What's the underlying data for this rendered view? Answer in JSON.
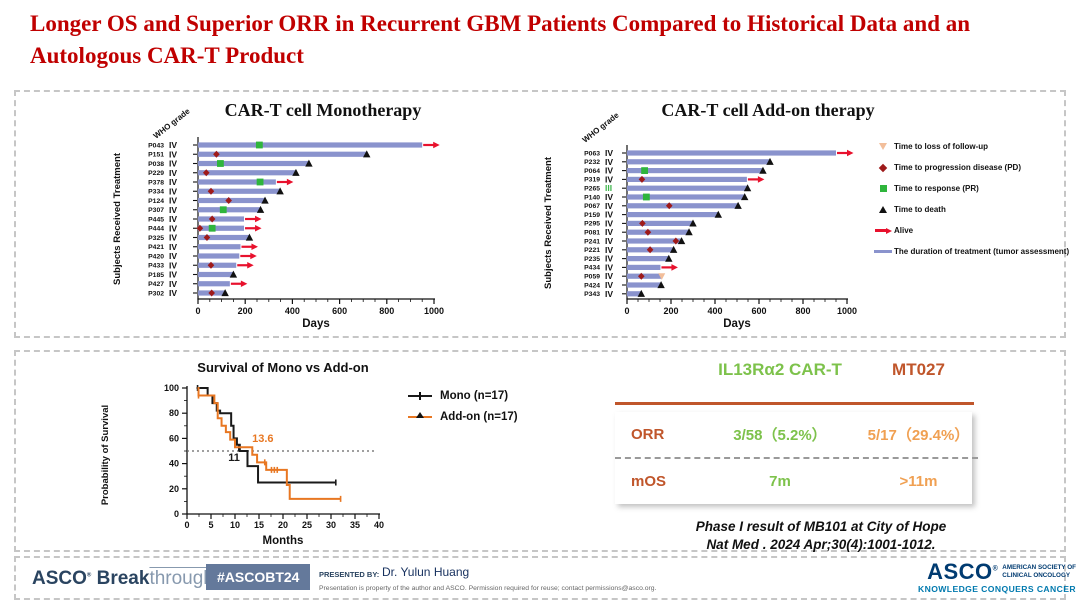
{
  "title": {
    "line1": "Longer OS and Superior ORR in Recurrent GBM Patients Compared to Historical Data and an",
    "line2": "Autologous CAR-T Product"
  },
  "colors": {
    "title_red": "#C00000",
    "bar": "#8A93CD",
    "pd": "#9E1A1A",
    "pr": "#2FB53C",
    "loss": "#F2BE9A",
    "alive": "#E8112D",
    "mono": "#1A1A1A",
    "addon": "#E87722",
    "grade3_green": "#3CB54A",
    "table_green": "#7DC24B",
    "table_orange_dark": "#C0562B",
    "table_orange_light": "#F0A052",
    "brand_navy": "#2A4460",
    "badge_bg": "#64799B",
    "asco_navy": "#003B71",
    "asco_teal": "#0079AE"
  },
  "chart_data": [
    {
      "type": "swimmer",
      "title": "CAR-T cell Monotherapy",
      "ylabel": "Subjects Received Treatment",
      "xlabel": "Days",
      "who_label": "WHO grade",
      "xlim": [
        0,
        1000
      ],
      "xticks": [
        0,
        200,
        400,
        600,
        800,
        1000
      ],
      "patients": [
        {
          "id": "P043",
          "grade": "IV",
          "days": 950,
          "events": [
            {
              "t": "pr",
              "day": 260
            },
            {
              "t": "alive"
            }
          ]
        },
        {
          "id": "P151",
          "grade": "IV",
          "days": 715,
          "events": [
            {
              "t": "pd",
              "day": 78
            },
            {
              "t": "death"
            }
          ]
        },
        {
          "id": "P038",
          "grade": "IV",
          "days": 470,
          "events": [
            {
              "t": "pr",
              "day": 95
            },
            {
              "t": "death"
            }
          ]
        },
        {
          "id": "P229",
          "grade": "IV",
          "days": 415,
          "events": [
            {
              "t": "pd",
              "day": 35
            },
            {
              "t": "death"
            }
          ]
        },
        {
          "id": "P378",
          "grade": "IV",
          "days": 330,
          "events": [
            {
              "t": "pr",
              "day": 263
            },
            {
              "t": "alive"
            }
          ]
        },
        {
          "id": "P334",
          "grade": "IV",
          "days": 348,
          "events": [
            {
              "t": "pd",
              "day": 55
            },
            {
              "t": "death"
            }
          ]
        },
        {
          "id": "P124",
          "grade": "IV",
          "days": 284,
          "events": [
            {
              "t": "pd",
              "day": 130
            },
            {
              "t": "death"
            }
          ]
        },
        {
          "id": "P307",
          "grade": "IV",
          "days": 265,
          "events": [
            {
              "t": "pr",
              "day": 107
            },
            {
              "t": "death"
            }
          ]
        },
        {
          "id": "P445",
          "grade": "IV",
          "days": 195,
          "events": [
            {
              "t": "pd",
              "day": 60
            },
            {
              "t": "alive"
            }
          ]
        },
        {
          "id": "P444",
          "grade": "IV",
          "days": 195,
          "events": [
            {
              "t": "pd",
              "day": 8
            },
            {
              "t": "pr",
              "day": 60
            },
            {
              "t": "alive"
            }
          ]
        },
        {
          "id": "P325",
          "grade": "IV",
          "days": 218,
          "events": [
            {
              "t": "pd",
              "day": 38
            },
            {
              "t": "death"
            }
          ]
        },
        {
          "id": "P421",
          "grade": "IV",
          "days": 180,
          "events": [
            {
              "t": "alive"
            }
          ]
        },
        {
          "id": "P420",
          "grade": "IV",
          "days": 175,
          "events": [
            {
              "t": "alive"
            }
          ]
        },
        {
          "id": "P433",
          "grade": "IV",
          "days": 162,
          "events": [
            {
              "t": "pd",
              "day": 55
            },
            {
              "t": "alive"
            }
          ]
        },
        {
          "id": "P185",
          "grade": "IV",
          "days": 150,
          "events": [
            {
              "t": "death"
            }
          ]
        },
        {
          "id": "P427",
          "grade": "IV",
          "days": 135,
          "events": [
            {
              "t": "alive"
            }
          ]
        },
        {
          "id": "P302",
          "grade": "IV",
          "days": 115,
          "events": [
            {
              "t": "pd",
              "day": 58
            },
            {
              "t": "death"
            }
          ]
        }
      ]
    },
    {
      "type": "swimmer",
      "title": "CAR-T cell Add-on therapy",
      "ylabel": "Subjects Received Treatment",
      "xlabel": "Days",
      "who_label": "WHO grade",
      "xlim": [
        0,
        1000
      ],
      "xticks": [
        0,
        200,
        400,
        600,
        800,
        1000
      ],
      "patients": [
        {
          "id": "P063",
          "grade": "IV",
          "days": 950,
          "events": [
            {
              "t": "alive"
            }
          ]
        },
        {
          "id": "P232",
          "grade": "IV",
          "days": 650,
          "events": [
            {
              "t": "death"
            }
          ]
        },
        {
          "id": "P064",
          "grade": "IV",
          "days": 618,
          "events": [
            {
              "t": "pr",
              "day": 80
            },
            {
              "t": "death"
            }
          ]
        },
        {
          "id": "P319",
          "grade": "IV",
          "days": 545,
          "events": [
            {
              "t": "pd",
              "day": 68
            },
            {
              "t": "alive"
            }
          ]
        },
        {
          "id": "P265",
          "grade": "III",
          "days": 548,
          "events": [
            {
              "t": "death"
            }
          ]
        },
        {
          "id": "P140",
          "grade": "IV",
          "days": 535,
          "events": [
            {
              "t": "pr",
              "day": 88
            },
            {
              "t": "death"
            }
          ]
        },
        {
          "id": "P067",
          "grade": "IV",
          "days": 505,
          "events": [
            {
              "t": "pd",
              "day": 192
            },
            {
              "t": "death"
            }
          ]
        },
        {
          "id": "P159",
          "grade": "IV",
          "days": 415,
          "events": [
            {
              "t": "death"
            }
          ]
        },
        {
          "id": "P295",
          "grade": "IV",
          "days": 300,
          "events": [
            {
              "t": "pd",
              "day": 70
            },
            {
              "t": "death"
            }
          ]
        },
        {
          "id": "P081",
          "grade": "IV",
          "days": 282,
          "events": [
            {
              "t": "pd",
              "day": 95
            },
            {
              "t": "death"
            }
          ]
        },
        {
          "id": "P241",
          "grade": "IV",
          "days": 248,
          "events": [
            {
              "t": "pd",
              "day": 222
            },
            {
              "t": "death"
            }
          ]
        },
        {
          "id": "P221",
          "grade": "IV",
          "days": 212,
          "events": [
            {
              "t": "pd",
              "day": 105
            },
            {
              "t": "death"
            }
          ]
        },
        {
          "id": "P235",
          "grade": "IV",
          "days": 190,
          "events": [
            {
              "t": "death"
            }
          ]
        },
        {
          "id": "P434",
          "grade": "IV",
          "days": 152,
          "events": [
            {
              "t": "alive"
            }
          ]
        },
        {
          "id": "P059",
          "grade": "IV",
          "days": 158,
          "events": [
            {
              "t": "pd",
              "day": 65
            },
            {
              "t": "loss"
            }
          ]
        },
        {
          "id": "P424",
          "grade": "IV",
          "days": 155,
          "events": [
            {
              "t": "death"
            }
          ]
        },
        {
          "id": "P343",
          "grade": "IV",
          "days": 65,
          "events": [
            {
              "t": "death"
            }
          ]
        }
      ]
    },
    {
      "type": "line",
      "title": "Survival of Mono vs Add-on",
      "xlabel": "Months",
      "ylabel": "Probability of Survival",
      "xlim": [
        0,
        40
      ],
      "ylim": [
        0,
        100
      ],
      "xticks": [
        0,
        5,
        10,
        15,
        20,
        25,
        30,
        35,
        40
      ],
      "yticks": [
        0,
        20,
        40,
        60,
        80,
        100
      ],
      "median_line_y": 50,
      "legend_position": "upper-right",
      "series": [
        {
          "name": "Mono (n=17)",
          "median_label": "11",
          "median_label_pos": [
            9.8,
            42
          ],
          "points": [
            [
              2,
              100
            ],
            [
              4.3,
              100
            ],
            [
              4.3,
              94
            ],
            [
              5.3,
              94
            ],
            [
              5.3,
              88
            ],
            [
              6.2,
              88
            ],
            [
              6.2,
              82
            ],
            [
              6.9,
              82
            ],
            [
              6.9,
              80
            ],
            [
              9.2,
              80
            ],
            [
              9.2,
              70
            ],
            [
              9.7,
              70
            ],
            [
              9.7,
              60
            ],
            [
              10.4,
              60
            ],
            [
              10.4,
              55
            ],
            [
              11,
              55
            ],
            [
              11,
              50
            ],
            [
              12.6,
              50
            ],
            [
              12.6,
              38
            ],
            [
              14.8,
              38
            ],
            [
              14.8,
              25
            ],
            [
              31,
              25
            ]
          ],
          "censors": [
            [
              2.2,
              100
            ],
            [
              10.8,
              52
            ],
            [
              31,
              25
            ]
          ]
        },
        {
          "name": "Add-on (n=17)",
          "median_label": "13.6",
          "median_label_pos": [
            15.8,
            57
          ],
          "points": [
            [
              2.2,
              100
            ],
            [
              2.4,
              100
            ],
            [
              2.4,
              94
            ],
            [
              5.7,
              94
            ],
            [
              5.7,
              88
            ],
            [
              6.4,
              88
            ],
            [
              6.4,
              76
            ],
            [
              7.2,
              76
            ],
            [
              7.2,
              70
            ],
            [
              8.1,
              70
            ],
            [
              8.1,
              65
            ],
            [
              9,
              65
            ],
            [
              9,
              59
            ],
            [
              10,
              59
            ],
            [
              10,
              53
            ],
            [
              13.6,
              53
            ],
            [
              13.6,
              47
            ],
            [
              14.6,
              47
            ],
            [
              14.6,
              41
            ],
            [
              16.5,
              41
            ],
            [
              16.5,
              35
            ],
            [
              20.8,
              35
            ],
            [
              20.8,
              23
            ],
            [
              21.4,
              23
            ],
            [
              21.4,
              12
            ],
            [
              32,
              12
            ]
          ],
          "censors": [
            [
              2.4,
              94
            ],
            [
              16.2,
              41
            ],
            [
              17.6,
              35
            ],
            [
              18.2,
              35
            ],
            [
              18.8,
              35
            ],
            [
              32,
              12
            ]
          ]
        }
      ]
    }
  ],
  "swimmer_legend": {
    "items": [
      {
        "symbol": "triangle-down",
        "label": "Time to loss of follow-up"
      },
      {
        "symbol": "diamond",
        "label": "Time to progression disease (PD)"
      },
      {
        "symbol": "square",
        "label": "Time to response (PR)"
      },
      {
        "symbol": "triangle-up",
        "label": "Time to death"
      },
      {
        "symbol": "arrow",
        "label": "Alive"
      },
      {
        "symbol": "line",
        "label": "The duration of treatment (tumor assessment)"
      }
    ]
  },
  "comparison": {
    "col1_header": "IL13Rα2 CAR-T",
    "col2_header": "MT027",
    "rows": [
      {
        "label": "ORR",
        "col1": "3/58（5.2%）",
        "col2": "5/17（29.4%）"
      },
      {
        "label": "mOS",
        "col1": "7m",
        "col2": ">11m"
      }
    ]
  },
  "citation": {
    "line1": "Phase I result of MB101 at City of Hope",
    "line2": "Nat Med . 2024 Apr;30(4):1001-1012."
  },
  "footer": {
    "brand_asco": "ASCO",
    "brand_break": "Break",
    "brand_through": "through",
    "hashtag": "#ASCOBT24",
    "presented_by_label": "PRESENTED BY:",
    "presenter": "Dr. Yulun Huang",
    "disclaimer": "Presentation is property of the author and ASCO. Permission required for reuse; contact permissions@asco.org.",
    "asco_logo": {
      "name": "ASCO",
      "society_line1": "AMERICAN SOCIETY OF",
      "society_line2": "CLINICAL ONCOLOGY",
      "tagline": "KNOWLEDGE CONQUERS CANCER"
    }
  }
}
